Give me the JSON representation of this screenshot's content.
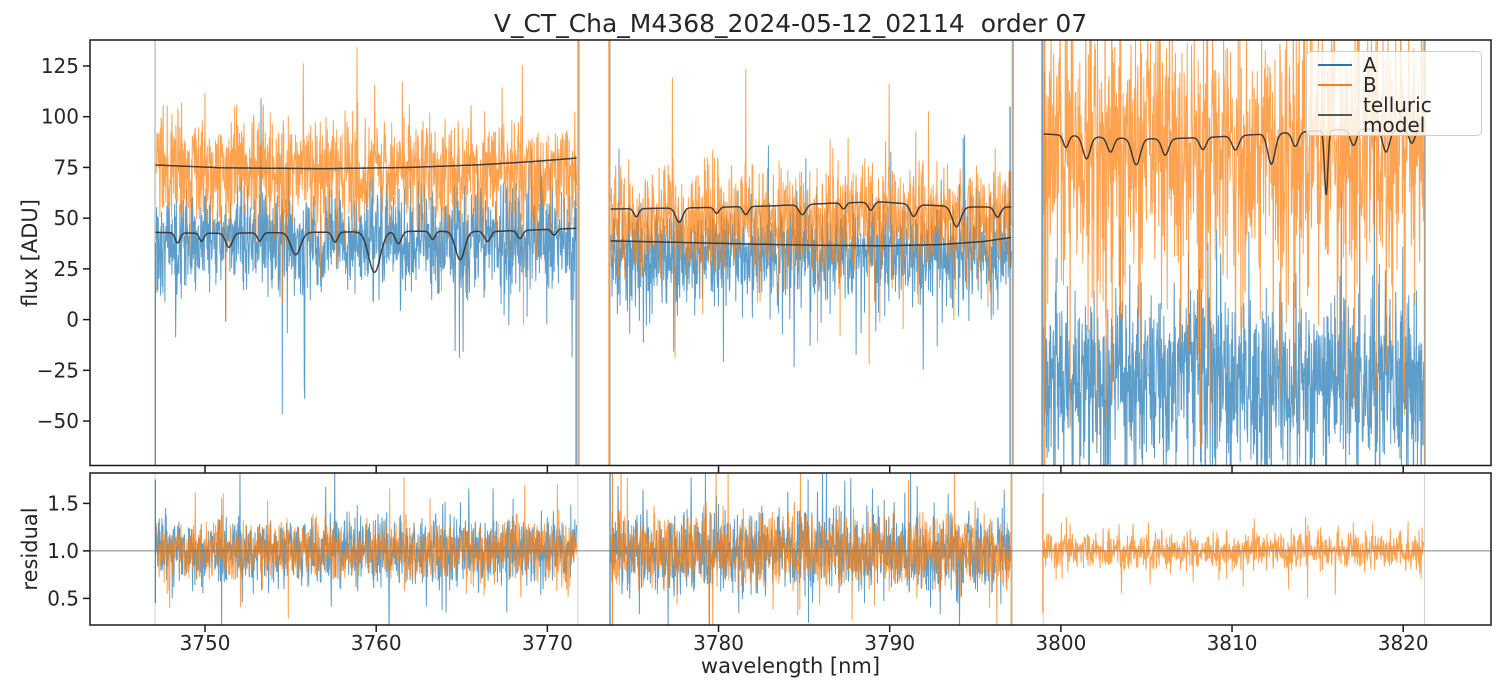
{
  "chart_data": {
    "type": "line",
    "title": "V_CT_Cha_M4368_2024-05-12_02114  order 07",
    "xlabel": "wavelength [nm]",
    "xlim": [
      3743.28,
      3825.13
    ],
    "x_ticks": [
      3750,
      3760,
      3770,
      3780,
      3790,
      3800,
      3810,
      3820
    ],
    "x_tick_labels": [
      "3750",
      "3760",
      "3770",
      "3780",
      "3790",
      "3800",
      "3810",
      "3820"
    ],
    "grid": false,
    "colors": {
      "A": "#1f77b4",
      "B": "#ff7f0e",
      "telluric_model": "#333333",
      "boundary_line": "#8c8c8c",
      "residual_hline": "#737373",
      "axis": "#1a1a1a"
    },
    "legend": {
      "position": "upper right",
      "entries": [
        {
          "label": "A",
          "color": "#1f77b4"
        },
        {
          "label": "B",
          "color": "#ff7f0e"
        },
        {
          "label": "telluric model",
          "color": "#595959"
        }
      ]
    },
    "panels": [
      {
        "name": "flux",
        "ylabel": "flux [ADU]",
        "ylim": [
          -71.9,
          137.8
        ],
        "y_ticks": [
          -50,
          -25,
          0,
          25,
          50,
          75,
          100,
          125
        ],
        "y_tick_labels": [
          "−50",
          "−25",
          "0",
          "25",
          "50",
          "75",
          "100",
          "125"
        ]
      },
      {
        "name": "residual",
        "ylabel": "residual",
        "ylim": [
          0.22,
          1.82
        ],
        "y_ticks": [
          0.5,
          1.0,
          1.5
        ],
        "y_tick_labels": [
          "0.5",
          "1.0",
          "1.5"
        ],
        "hline": 1.0
      }
    ],
    "segment_boundaries_nm": [
      3747.08,
      3771.78,
      3773.66,
      3797.16,
      3798.97,
      3821.24
    ],
    "flux_segments": [
      {
        "range": [
          3747.15,
          3771.7
        ],
        "A": {
          "mean": 39,
          "sigma": 13,
          "p_down": 0.03,
          "p_up": 0.006
        },
        "B": {
          "mean": 74,
          "sigma": 14,
          "p_down": 0.025,
          "p_up": 0.012
        },
        "model_A": {
          "base": [
            [
              3747.1,
              43
            ],
            [
              3750,
              42.5
            ],
            [
              3756,
              43
            ],
            [
              3762,
              43.5
            ],
            [
              3767,
              43.5
            ],
            [
              3771.7,
              45
            ]
          ],
          "dips": [
            [
              3748.4,
              5,
              0.2
            ],
            [
              3749.8,
              4,
              0.18
            ],
            [
              3751.4,
              7,
              0.28
            ],
            [
              3753.2,
              4,
              0.2
            ],
            [
              3755.3,
              11,
              0.4
            ],
            [
              3757.6,
              5,
              0.22
            ],
            [
              3759.9,
              20,
              0.48
            ],
            [
              3761.3,
              6,
              0.25
            ],
            [
              3763.3,
              4,
              0.2
            ],
            [
              3764.9,
              14,
              0.38
            ],
            [
              3766.5,
              5,
              0.25
            ],
            [
              3768.4,
              4,
              0.22
            ],
            [
              3770.4,
              3,
              0.2
            ]
          ]
        },
        "model_B": {
          "base": [
            [
              3747.1,
              76.2
            ],
            [
              3751,
              74.8
            ],
            [
              3757,
              74.4
            ],
            [
              3762,
              75
            ],
            [
              3766,
              76.3
            ],
            [
              3769,
              77.8
            ],
            [
              3771.7,
              79.6
            ]
          ],
          "dips": []
        }
      },
      {
        "range": [
          3773.72,
          3797.1
        ],
        "A": {
          "mean": 33,
          "sigma": 12,
          "p_down": 0.03,
          "p_up": 0.008
        },
        "B": {
          "mean": 50,
          "sigma": 13,
          "p_down": 0.03,
          "p_up": 0.01
        },
        "model_A": {
          "base": [
            [
              3773.7,
              38.8
            ],
            [
              3778,
              38
            ],
            [
              3782,
              37.2
            ],
            [
              3786,
              36.6
            ],
            [
              3790,
              36.4
            ],
            [
              3793,
              37
            ],
            [
              3795.5,
              38.5
            ],
            [
              3797.1,
              40.5
            ]
          ],
          "dips": []
        },
        "model_B": {
          "base": [
            [
              3773.7,
              54.5
            ],
            [
              3778,
              55
            ],
            [
              3783,
              56
            ],
            [
              3787,
              57.5
            ],
            [
              3789.5,
              58
            ],
            [
              3792,
              56.5
            ],
            [
              3794.5,
              55.5
            ],
            [
              3797.1,
              55.5
            ]
          ],
          "dips": [
            [
              3775.2,
              4,
              0.2
            ],
            [
              3777.7,
              7,
              0.28
            ],
            [
              3779.9,
              3,
              0.2
            ],
            [
              3781.6,
              4,
              0.22
            ],
            [
              3784.9,
              5,
              0.28
            ],
            [
              3787.3,
              3,
              0.2
            ],
            [
              3788.9,
              4,
              0.22
            ],
            [
              3791.4,
              6,
              0.28
            ],
            [
              3793.9,
              10,
              0.35
            ],
            [
              3796.3,
              5,
              0.25
            ]
          ]
        }
      },
      {
        "range": [
          3799.0,
          3821.2
        ],
        "A": {
          "mean": -30,
          "sigma": 22,
          "p_down": 0.03,
          "p_up": 0.012
        },
        "B": {
          "mean": 84,
          "sigma": 30,
          "p_down": 0.05,
          "p_up": 0.02
        },
        "model_B": {
          "base": [
            [
              3799,
              91.5
            ],
            [
              3803,
              89.5
            ],
            [
              3806,
              89
            ],
            [
              3809,
              90
            ],
            [
              3812,
              91.5
            ],
            [
              3815,
              93
            ],
            [
              3817.5,
              94
            ],
            [
              3819.5,
              93.5
            ],
            [
              3821.2,
              92.5
            ]
          ],
          "dips": [
            [
              3800.3,
              6,
              0.22
            ],
            [
              3801.5,
              11,
              0.3
            ],
            [
              3802.9,
              7,
              0.26
            ],
            [
              3804.4,
              13,
              0.34
            ],
            [
              3806.1,
              8,
              0.28
            ],
            [
              3808.3,
              6,
              0.26
            ],
            [
              3810.2,
              7,
              0.28
            ],
            [
              3812.3,
              15,
              0.3
            ],
            [
              3813.7,
              7,
              0.26
            ],
            [
              3815.5,
              32,
              0.14
            ],
            [
              3817.1,
              8,
              0.26
            ],
            [
              3819.0,
              11,
              0.28
            ],
            [
              3820.5,
              6,
              0.22
            ]
          ]
        }
      }
    ],
    "residual_segments": [
      {
        "range": [
          3747.15,
          3771.7
        ],
        "A": {
          "sigma": 0.17,
          "p_down": 0.02,
          "p_up": 0.02
        },
        "B": {
          "sigma": 0.15,
          "p_down": 0.02,
          "p_up": 0.02
        }
      },
      {
        "range": [
          3773.72,
          3797.1
        ],
        "A": {
          "sigma": 0.2,
          "p_down": 0.02,
          "p_up": 0.02
        },
        "B": {
          "sigma": 0.18,
          "p_down": 0.02,
          "p_up": 0.02
        }
      },
      {
        "range": [
          3799.0,
          3821.2
        ],
        "B": {
          "sigma": 0.09,
          "p_down": 0.02,
          "p_up": 0.02
        }
      }
    ],
    "edge_spikes": {
      "flux": [
        {
          "wl": 3747.1,
          "series": "A",
          "v0": -72,
          "v1": 38
        },
        {
          "wl": 3771.68,
          "series": "A",
          "v0": -72,
          "v1": 55
        },
        {
          "wl": 3771.85,
          "series": "B",
          "v0": -72,
          "v1": 138
        },
        {
          "wl": 3773.6,
          "series": "B",
          "v0": -72,
          "v1": 138
        },
        {
          "wl": 3797.03,
          "series": "A",
          "v0": -72,
          "v1": 105
        },
        {
          "wl": 3797.22,
          "series": "B",
          "v0": -72,
          "v1": 138
        },
        {
          "wl": 3798.9,
          "series": "A",
          "v0": -72,
          "v1": 138
        },
        {
          "wl": 3799.06,
          "series": "B",
          "v0": -72,
          "v1": 138
        },
        {
          "wl": 3821.28,
          "series": "B",
          "v0": -72,
          "v1": 138
        }
      ],
      "residual": [
        {
          "wl": 3747.1,
          "series": "A",
          "v0": 0.45,
          "v1": 1.75
        },
        {
          "wl": 3773.66,
          "series": "A",
          "v0": 0.22,
          "v1": 1.82
        },
        {
          "wl": 3773.8,
          "series": "B",
          "v0": 0.22,
          "v1": 1.82
        },
        {
          "wl": 3797.1,
          "series": "B",
          "v0": 0.22,
          "v1": 1.82
        },
        {
          "wl": 3798.95,
          "series": "B",
          "v0": 0.35,
          "v1": 1.6
        }
      ]
    }
  }
}
